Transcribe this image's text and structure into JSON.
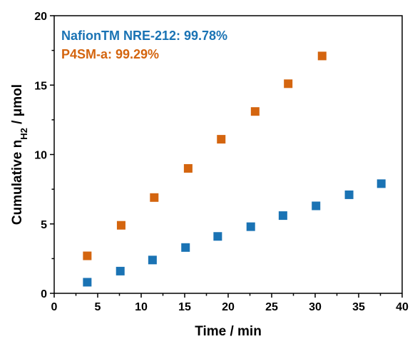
{
  "chart_data": {
    "type": "scatter",
    "xlabel": "Time / min",
    "ylabel": {
      "prefix": "Cumulative n",
      "subscript_main": "H",
      "subscript_index": "2",
      "suffix": " / μmol"
    },
    "xlim": [
      0,
      40
    ],
    "ylim": [
      0,
      20
    ],
    "xticks": [
      "0",
      "5",
      "10",
      "15",
      "20",
      "25",
      "30",
      "35",
      "40"
    ],
    "yticks": [
      "0",
      "5",
      "10",
      "15",
      "20"
    ],
    "grid": false,
    "legend_position": "top-left",
    "series": [
      {
        "name": "NafionTM NRE-212: 99.78%",
        "color": "#1a73b4",
        "marker": "square",
        "x": [
          3.8,
          7.6,
          11.3,
          15.1,
          18.8,
          22.6,
          26.3,
          30.1,
          33.9,
          37.6
        ],
        "y": [
          0.8,
          1.6,
          2.4,
          3.3,
          4.1,
          4.8,
          5.6,
          6.3,
          7.1,
          7.9
        ]
      },
      {
        "name": "P4SM-a: 99.29%",
        "color": "#d4650f",
        "marker": "square",
        "x": [
          3.8,
          7.7,
          11.5,
          15.4,
          19.2,
          23.1,
          26.9,
          30.8
        ],
        "y": [
          2.7,
          4.9,
          6.9,
          9.0,
          11.1,
          13.1,
          15.1,
          17.1
        ]
      }
    ]
  }
}
